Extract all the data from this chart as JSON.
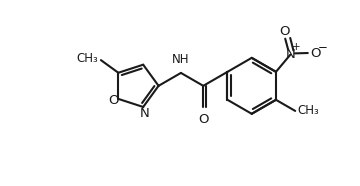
{
  "bg_color": "#ffffff",
  "line_color": "#1a1a1a",
  "line_width": 1.5,
  "font_size": 8.5,
  "fig_width": 3.6,
  "fig_height": 1.86,
  "dpi": 100,
  "xlim": [
    0,
    10
  ],
  "ylim": [
    -1.5,
    3.5
  ]
}
